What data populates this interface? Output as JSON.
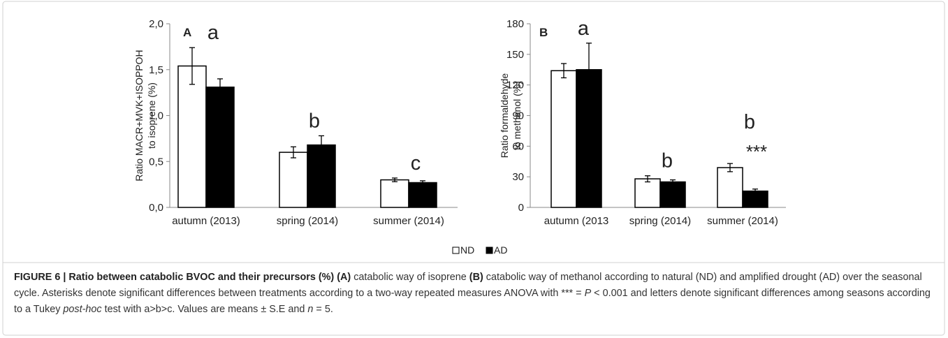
{
  "chart_data": [
    {
      "type": "bar",
      "panel": "A",
      "y_label": [
        "Ratio MACR+MVK+ISOPPOH",
        "to isoprene (%)"
      ],
      "categories": [
        "autumn (2013)",
        "spring (2014)",
        "summer (2014)"
      ],
      "series": [
        {
          "name": "ND",
          "color": "#ffffff",
          "values": [
            1.54,
            0.6,
            0.3
          ],
          "errors": [
            0.2,
            0.06,
            0.02
          ]
        },
        {
          "name": "AD",
          "color": "#000000",
          "values": [
            1.31,
            0.68,
            0.27
          ],
          "errors": [
            0.09,
            0.1,
            0.02
          ]
        }
      ],
      "letters": [
        "a",
        "b",
        "c"
      ],
      "significance": [
        null,
        null,
        null
      ],
      "ylim": [
        0,
        2
      ],
      "yticks": [
        {
          "value": 0,
          "label": "0,0"
        },
        {
          "value": 0.5,
          "label": "0,5"
        },
        {
          "value": 1,
          "label": "1,0"
        },
        {
          "value": 1.5,
          "label": "1,5"
        },
        {
          "value": 2,
          "label": "2,0"
        }
      ]
    },
    {
      "type": "bar",
      "panel": "B",
      "y_label": [
        "Ratio formaldehyde",
        "to methanol (%)"
      ],
      "categories": [
        "autumn (2013",
        "spring (2014)",
        "summer (2014)"
      ],
      "series": [
        {
          "name": "ND",
          "color": "#ffffff",
          "values": [
            134,
            28,
            39
          ],
          "errors": [
            7,
            3,
            4
          ]
        },
        {
          "name": "AD",
          "color": "#000000",
          "values": [
            135,
            25,
            16
          ],
          "errors": [
            26,
            2,
            2
          ]
        }
      ],
      "letters": [
        "a",
        "b",
        "b"
      ],
      "significance": [
        null,
        null,
        "***"
      ],
      "ylim": [
        0,
        180
      ],
      "yticks": [
        0,
        30,
        60,
        90,
        120,
        150,
        180
      ]
    }
  ],
  "caption": [
    "FIGURE 6 | Ratio between catabolic BVOC and their precursors (%) (A)",
    " catabolic way of isoprene ",
    "(B)",
    " catabolic way of methanol according to natural (ND) and amplified drought (AD) over the seasonal cycle. Asterisks denote significant differences between treatments according to a two-way repeated measures ANOVA with *** = ",
    "P",
    " < 0.001 and letters denote significant differences among seasons according to a Tukey ",
    "post-hoc",
    " test with a>b>c. Values are means ± S.E and ",
    "n",
    " = 5."
  ]
}
